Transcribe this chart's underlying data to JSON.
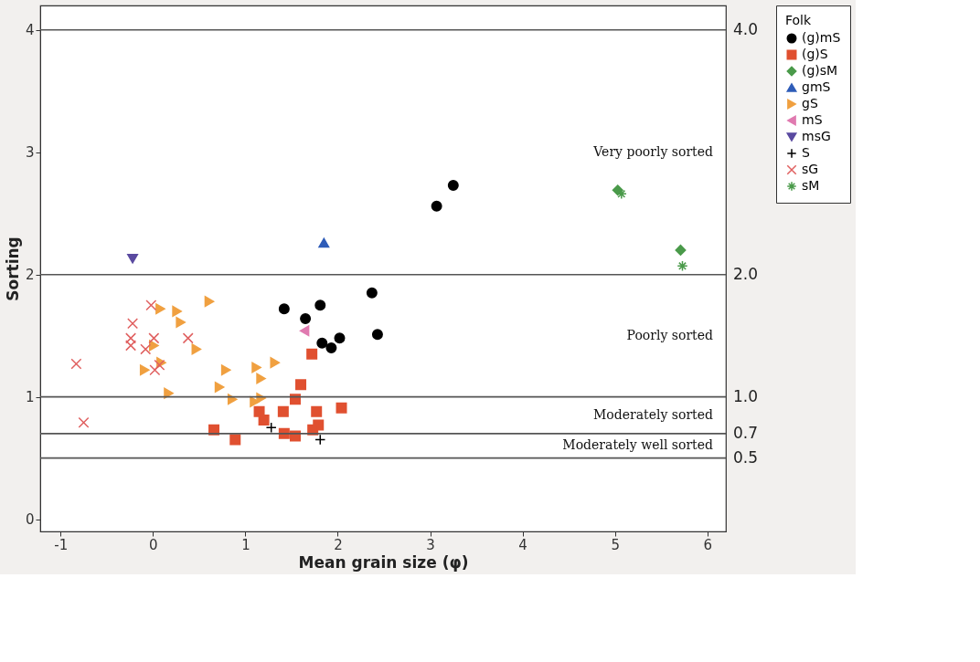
{
  "chart_data": {
    "type": "scatter",
    "xlabel": "Mean grain size (φ)",
    "ylabel": "Sorting",
    "legend_title": "Folk",
    "legend": "top right",
    "grid": false,
    "xlim": [
      -1.22,
      6.2
    ],
    "ylim": [
      -0.1,
      4.2
    ],
    "xticks": [
      -1,
      0,
      1,
      2,
      3,
      4,
      5,
      6
    ],
    "yticks": [
      0,
      1,
      2,
      3,
      4
    ],
    "series": [
      {
        "name": "(g)mS",
        "color": "#000000",
        "marker": "circle",
        "x": [
          1.42,
          1.81,
          1.65,
          1.83,
          1.93,
          2.02,
          2.37,
          2.43,
          3.07,
          3.25
        ],
        "values": [
          1.72,
          1.75,
          1.64,
          1.44,
          1.4,
          1.48,
          1.85,
          1.51,
          2.56,
          2.73
        ]
      },
      {
        "name": "(g)S",
        "color": "#e05030",
        "marker": "square",
        "x": [
          1.72,
          1.6,
          1.54,
          1.41,
          1.77,
          2.04,
          1.15,
          1.2,
          0.66,
          0.89,
          1.42,
          1.54,
          1.79,
          1.73
        ],
        "values": [
          1.35,
          1.1,
          0.98,
          0.88,
          0.88,
          0.91,
          0.88,
          0.81,
          0.73,
          0.65,
          0.7,
          0.68,
          0.77,
          0.73
        ]
      },
      {
        "name": "(g)sM",
        "color": "#4a9a4a",
        "marker": "diamond",
        "x": [
          5.03,
          5.71
        ],
        "values": [
          2.69,
          2.2
        ]
      },
      {
        "name": "gmS",
        "color": "#2e5cb8",
        "marker": "triangle-up",
        "x": [
          1.85
        ],
        "values": [
          2.26
        ]
      },
      {
        "name": "gS",
        "color": "#f0a040",
        "marker": "triangle-right",
        "x": [
          0.08,
          0.26,
          0.3,
          0.61,
          0.01,
          0.47,
          -0.09,
          0.09,
          0.17,
          0.79,
          0.72,
          0.86,
          1.12,
          1.17,
          1.32,
          1.1,
          1.17
        ],
        "values": [
          1.72,
          1.7,
          1.61,
          1.78,
          1.42,
          1.39,
          1.22,
          1.28,
          1.03,
          1.22,
          1.08,
          0.98,
          1.24,
          1.15,
          1.28,
          0.96,
          0.99
        ]
      },
      {
        "name": "mS",
        "color": "#e07ab0",
        "marker": "triangle-left",
        "x": [
          1.64
        ],
        "values": [
          1.54
        ]
      },
      {
        "name": "msG",
        "color": "#5a4aa0",
        "marker": "triangle-down",
        "x": [
          -0.22
        ],
        "values": [
          2.13
        ]
      },
      {
        "name": "S",
        "color": "#000000",
        "marker": "plus",
        "x": [
          1.28,
          1.81
        ],
        "values": [
          0.75,
          0.65
        ]
      },
      {
        "name": "sG",
        "color": "#e06060",
        "marker": "x",
        "x": [
          -0.83,
          -0.75,
          -0.02,
          -0.22,
          -0.24,
          -0.24,
          0.01,
          -0.08,
          0.02,
          0.07,
          0.38
        ],
        "values": [
          1.27,
          0.79,
          1.75,
          1.6,
          1.48,
          1.42,
          1.48,
          1.39,
          1.22,
          1.26,
          1.48
        ]
      },
      {
        "name": "sM",
        "color": "#4a9a4a",
        "marker": "cross",
        "x": [
          5.07,
          5.73
        ],
        "values": [
          2.66,
          2.07
        ]
      }
    ],
    "ref_lines": [
      {
        "axis": "y",
        "value": 4,
        "label": "4.0"
      },
      {
        "axis": "y",
        "value": 2,
        "label": "2.0"
      },
      {
        "axis": "y",
        "value": 1,
        "label": "1.0"
      },
      {
        "axis": "y",
        "value": 0.7,
        "label": "0.7"
      },
      {
        "axis": "y",
        "value": 0.5,
        "label": "0.5"
      }
    ],
    "annotations": [
      "Very poorly sorted",
      "Poorly sorted",
      "Moderately sorted",
      "Moderately well sorted"
    ]
  }
}
